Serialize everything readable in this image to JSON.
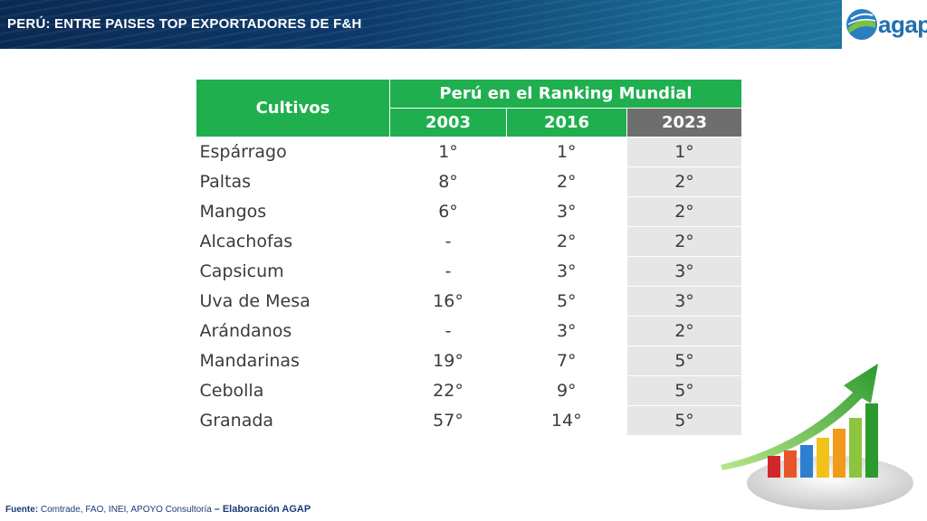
{
  "header": {
    "title": "PERÚ: ENTRE PAISES TOP EXPORTADORES DE F&H",
    "logo_text": "agap"
  },
  "table": {
    "crop_header": "Cultivos",
    "ranking_header": "Perú en el Ranking Mundial",
    "years": [
      "2003",
      "2016",
      "2023"
    ],
    "rows": [
      {
        "crop": "Espárrago",
        "y2003": "1°",
        "y2016": "1°",
        "y2023": "1°"
      },
      {
        "crop": "Paltas",
        "y2003": "8°",
        "y2016": "2°",
        "y2023": "2°"
      },
      {
        "crop": "Mangos",
        "y2003": "6°",
        "y2016": "3°",
        "y2023": "2°"
      },
      {
        "crop": "Alcachofas",
        "y2003": "-",
        "y2016": "2°",
        "y2023": "2°"
      },
      {
        "crop": "Capsicum",
        "y2003": "-",
        "y2016": "3°",
        "y2023": "3°"
      },
      {
        "crop": "Uva de Mesa",
        "y2003": "16°",
        "y2016": "5°",
        "y2023": "3°"
      },
      {
        "crop": "Arándanos",
        "y2003": "-",
        "y2016": "3°",
        "y2023": "2°"
      },
      {
        "crop": "Mandarinas",
        "y2003": "19°",
        "y2016": "7°",
        "y2023": "5°"
      },
      {
        "crop": "Cebolla",
        "y2003": "22°",
        "y2016": "9°",
        "y2023": "5°"
      },
      {
        "crop": "Granada",
        "y2003": "57°",
        "y2016": "14°",
        "y2023": "5°"
      }
    ]
  },
  "footer": {
    "label": "Fuente:",
    "sources": "Comtrade, FAO, INEI, APOYO Consultoría",
    "elaboration": "– Elaboración AGAP"
  },
  "colors": {
    "header_green": "#1faf4e",
    "header_gray": "#6e6e6e",
    "column_2023_bg": "#e6e6e6",
    "title_bar": "#0d3a6c"
  },
  "icons": {
    "logo": "agap-globe-logo",
    "decoration": "growth-bar-chart-arrow-icon"
  }
}
